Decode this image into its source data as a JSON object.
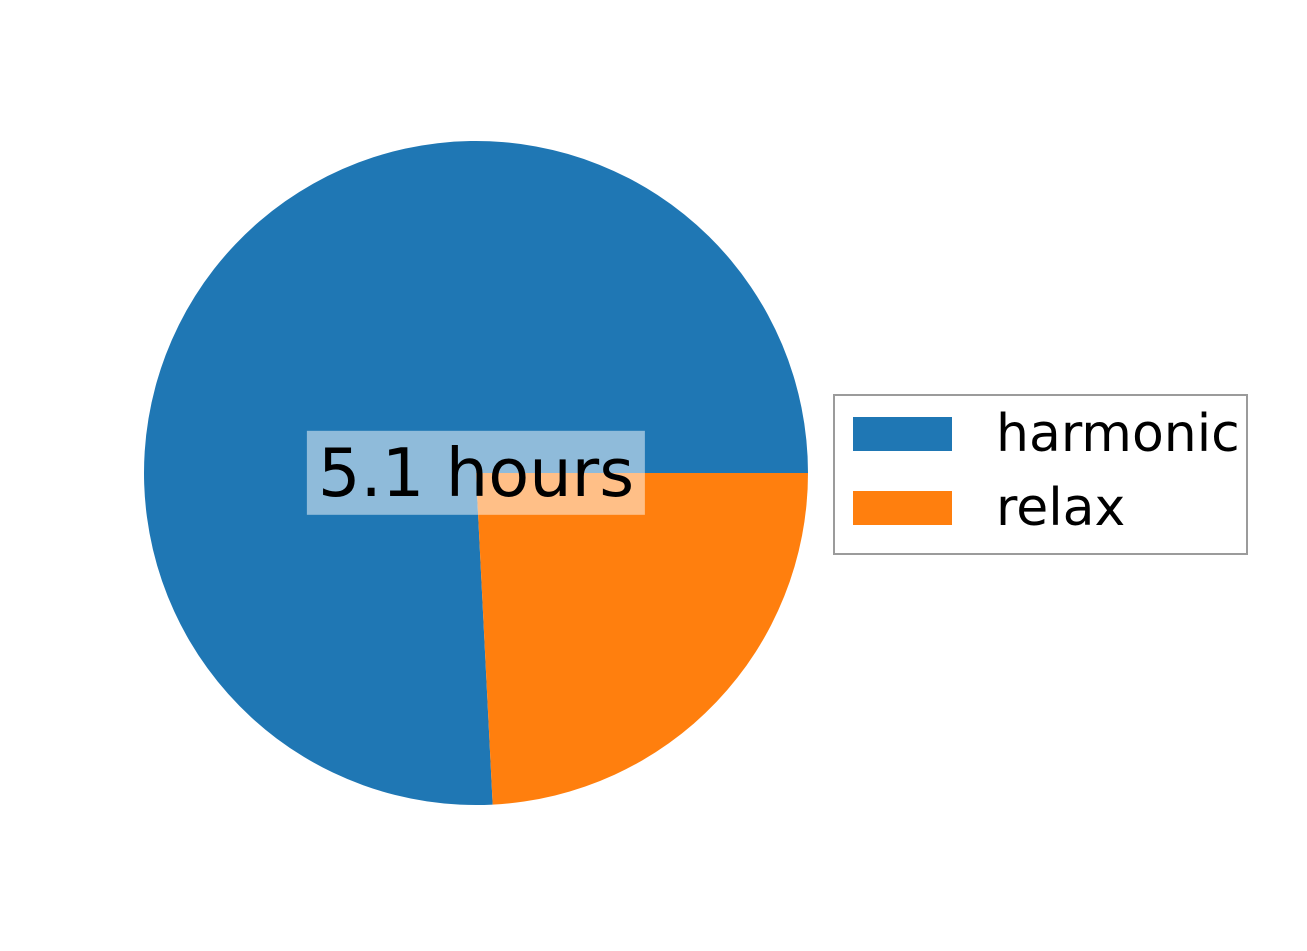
{
  "figure": {
    "background_color": "#ffffff"
  },
  "chart_data": {
    "type": "pie",
    "labels": [
      "harmonic",
      "relax"
    ],
    "values_fraction": [
      0.758,
      0.242
    ],
    "colors": [
      "#1f77b4",
      "#ff7f0e"
    ],
    "start_angle_deg": 0,
    "direction": "counterclockwise",
    "center_label": "5.1 hours",
    "center_label_color": "#000000",
    "center_label_bg": "rgba(255,255,255,0.5)",
    "legend": {
      "position": "center right",
      "border_color": "#9b9b9b",
      "entries": [
        {
          "label": "harmonic",
          "color": "#1f77b4"
        },
        {
          "label": "relax",
          "color": "#ff7f0e"
        }
      ]
    }
  }
}
